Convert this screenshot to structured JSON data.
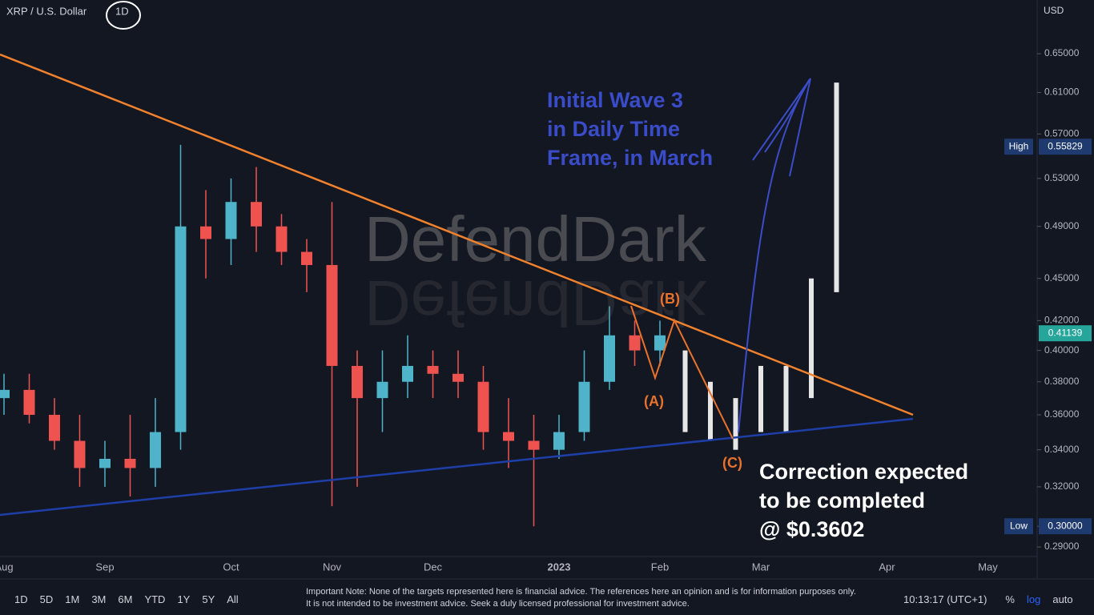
{
  "chart_data": {
    "type": "candlestick",
    "title": "XRP / U.S. Dollar",
    "interval": "1D",
    "currency": "USD",
    "watermark": "DefendDark",
    "categories": [
      "Aug",
      null,
      null,
      null,
      "Sep",
      null,
      null,
      null,
      null,
      "Oct",
      null,
      null,
      null,
      "Nov",
      null,
      null,
      null,
      "Dec",
      null,
      null,
      null,
      null,
      "2023",
      null,
      null,
      null,
      "Feb",
      null,
      null,
      null,
      "Mar",
      null,
      null,
      null,
      null,
      "Apr",
      null,
      null,
      null,
      "May"
    ],
    "open": [
      0.37,
      0.375,
      0.36,
      0.345,
      0.33,
      0.335,
      0.33,
      0.35,
      0.49,
      0.48,
      0.51,
      0.49,
      0.47,
      0.46,
      0.39,
      0.37,
      0.38,
      0.39,
      0.385,
      0.38,
      0.35,
      0.345,
      0.34,
      0.35,
      0.38,
      0.41,
      0.4,
      null,
      null,
      null,
      null,
      null,
      null,
      null,
      null,
      null,
      null,
      null,
      null,
      null
    ],
    "high": [
      0.385,
      0.385,
      0.37,
      0.36,
      0.345,
      0.36,
      0.37,
      0.56,
      0.52,
      0.53,
      0.54,
      0.5,
      0.48,
      0.51,
      0.4,
      0.4,
      0.41,
      0.4,
      0.4,
      0.39,
      0.37,
      0.36,
      0.36,
      0.4,
      0.43,
      0.42,
      0.42,
      null,
      null,
      null,
      null,
      null,
      null,
      null,
      null,
      null,
      null,
      null,
      null,
      null
    ],
    "low": [
      0.36,
      0.355,
      0.34,
      0.32,
      0.32,
      0.315,
      0.32,
      0.34,
      0.45,
      0.46,
      0.47,
      0.46,
      0.44,
      0.31,
      0.32,
      0.35,
      0.37,
      0.37,
      0.37,
      0.34,
      0.33,
      0.3,
      0.335,
      0.345,
      0.375,
      0.39,
      0.39,
      null,
      null,
      null,
      null,
      null,
      null,
      null,
      null,
      null,
      null,
      null,
      null,
      null
    ],
    "close": [
      0.375,
      0.36,
      0.345,
      0.33,
      0.335,
      0.33,
      0.35,
      0.49,
      0.48,
      0.51,
      0.49,
      0.47,
      0.46,
      0.39,
      0.37,
      0.38,
      0.39,
      0.385,
      0.38,
      0.35,
      0.345,
      0.34,
      0.35,
      0.38,
      0.41,
      0.4,
      0.41,
      null,
      null,
      null,
      null,
      null,
      null,
      null,
      null,
      null,
      null,
      null,
      null,
      null
    ],
    "projection_low": [
      null,
      null,
      null,
      null,
      null,
      null,
      null,
      null,
      null,
      null,
      null,
      null,
      null,
      null,
      null,
      null,
      null,
      null,
      null,
      null,
      null,
      null,
      null,
      null,
      null,
      null,
      null,
      0.35,
      0.345,
      0.34,
      0.35,
      0.35,
      0.37,
      0.44,
      null,
      null,
      null,
      null,
      null,
      null
    ],
    "projection_high": [
      null,
      null,
      null,
      null,
      null,
      null,
      null,
      null,
      null,
      null,
      null,
      null,
      null,
      null,
      null,
      null,
      null,
      null,
      null,
      null,
      null,
      null,
      null,
      null,
      null,
      null,
      null,
      0.4,
      0.38,
      0.37,
      0.39,
      0.39,
      0.45,
      0.62,
      null,
      null,
      null,
      null,
      null,
      null
    ],
    "up_color": "#4fb3c9",
    "down_color": "#ef5350",
    "projection_color": "#e6e6e6",
    "log_scale": true,
    "ylim": [
      0.2855,
      0.7097
    ],
    "yticks": [
      {
        "value": 0.65,
        "label": "0.65000"
      },
      {
        "value": 0.61,
        "label": "0.61000"
      },
      {
        "value": 0.57,
        "label": "0.57000"
      },
      {
        "value": 0.53,
        "label": "0.53000"
      },
      {
        "value": 0.49,
        "label": "0.49000"
      },
      {
        "value": 0.45,
        "label": "0.45000"
      },
      {
        "value": 0.42,
        "label": "0.42000"
      },
      {
        "value": 0.4,
        "label": "0.40000"
      },
      {
        "value": 0.38,
        "label": "0.38000"
      },
      {
        "value": 0.36,
        "label": "0.36000"
      },
      {
        "value": 0.34,
        "label": "0.34000"
      },
      {
        "value": 0.32,
        "label": "0.32000"
      },
      {
        "value": 0.3,
        "label": "0.30000"
      },
      {
        "value": 0.29,
        "label": "0.29000"
      }
    ],
    "high_marker": {
      "label": "High",
      "value": 0.55829
    },
    "current_marker": {
      "value": 0.41139
    },
    "low_marker": {
      "label": "Low",
      "value": {
        "value": 0.3,
        "label": "0.30000"
      }
    },
    "wave_labels": [
      "(A)",
      "(B)",
      "(C)"
    ],
    "annotations": [
      [
        "Initial Wave 3",
        "in Daily Time",
        "Frame, in March"
      ],
      [
        "Correction expected",
        "to be completed",
        "@ $0.3602"
      ]
    ]
  },
  "toolbar": {
    "ranges": [
      "1D",
      "5D",
      "1M",
      "3M",
      "6M",
      "YTD",
      "1Y",
      "5Y",
      "All"
    ],
    "note": "Important Note: None of the targets represented here is financial advice. The references here an opinion and is for information purposes only. It is not intended to be investment advice. Seek a duly licensed professional for investment advice.",
    "time": "10:13:17 (UTC+1)",
    "percent": "%",
    "log": "log",
    "auto": "auto"
  }
}
